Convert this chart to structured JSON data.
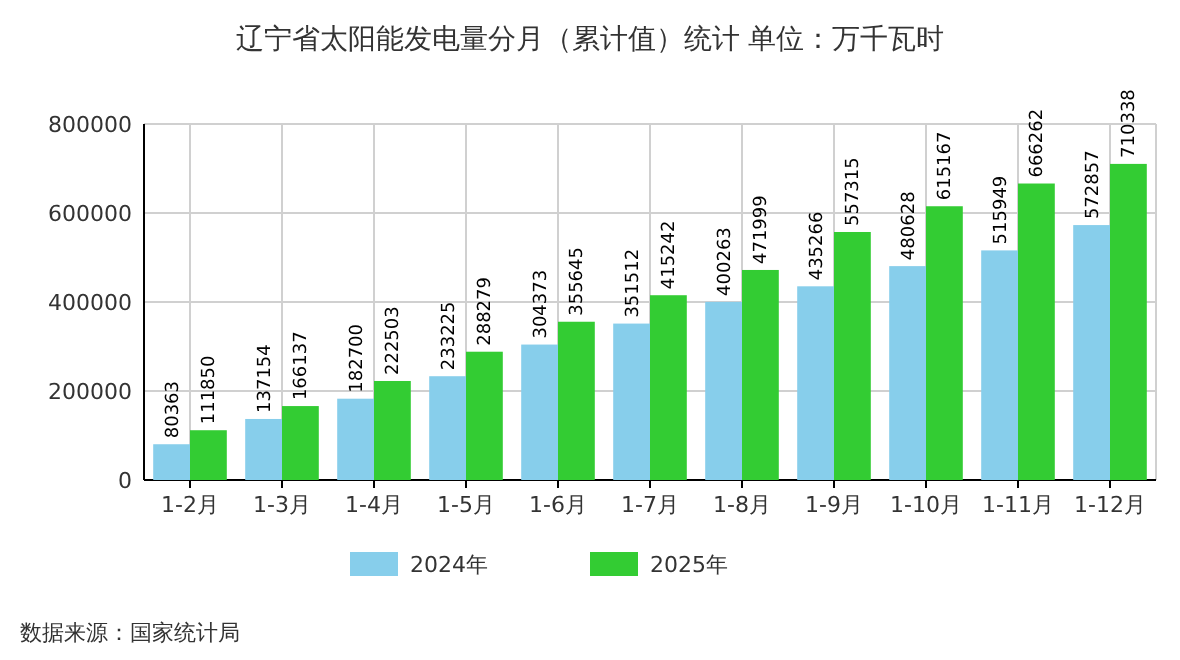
{
  "chart_data": {
    "type": "bar",
    "title": "辽宁省太阳能发电量分月（累计值）统计  单位：万千瓦时",
    "categories": [
      "1-2月",
      "1-3月",
      "1-4月",
      "1-5月",
      "1-6月",
      "1-7月",
      "1-8月",
      "1-9月",
      "1-10月",
      "1-11月",
      "1-12月"
    ],
    "series": [
      {
        "name": "2024年",
        "color": "#87ceeb",
        "values": [
          80363,
          137154,
          182700,
          233225,
          304373,
          351512,
          400263,
          435266,
          480628,
          515949,
          572857
        ]
      },
      {
        "name": "2025年",
        "color": "#33cc33",
        "values": [
          111850,
          166137,
          222503,
          288279,
          355645,
          415242,
          471999,
          557315,
          615167,
          666262,
          710338
        ]
      }
    ],
    "ylim": [
      0,
      800000
    ],
    "yticks": [
      0,
      200000,
      400000,
      600000,
      800000
    ],
    "grid": true,
    "legend": "bottom",
    "data_labels": true,
    "annotations": [
      "数据来源：国家统计局"
    ]
  }
}
